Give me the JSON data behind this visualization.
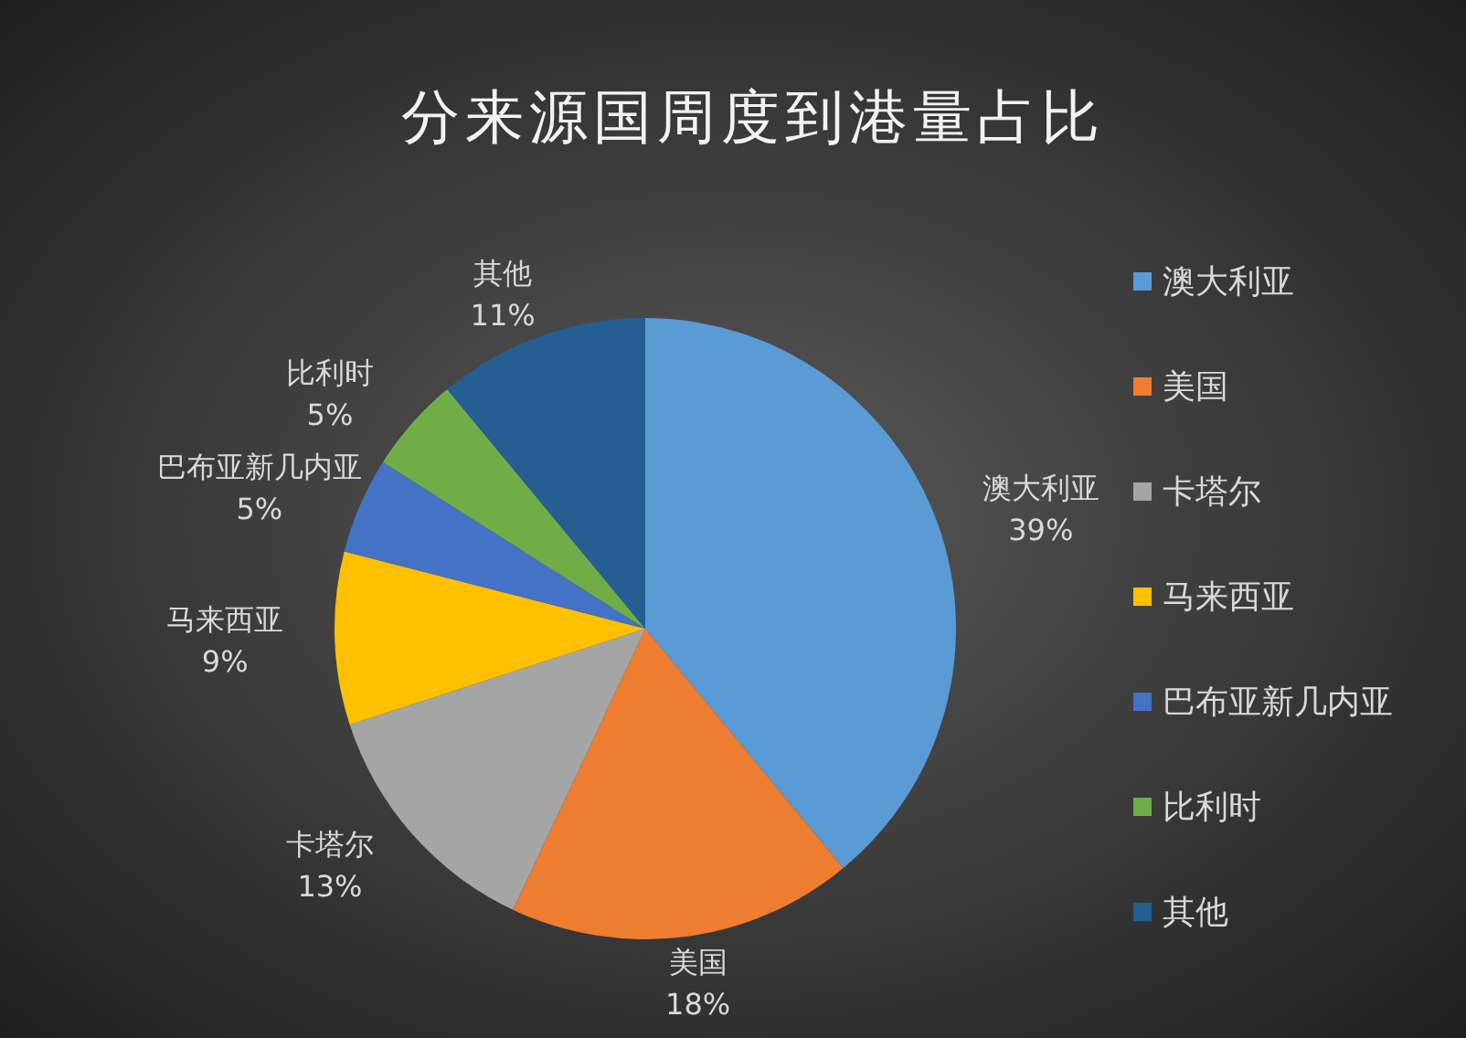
{
  "chart_data": {
    "type": "pie",
    "title": "分来源国周度到港量占比",
    "categories": [
      "澳大利亚",
      "美国",
      "卡塔尔",
      "马来西亚",
      "巴布亚新几内亚",
      "比利时",
      "其他"
    ],
    "values": [
      39,
      18,
      13,
      9,
      5,
      5,
      11
    ],
    "value_labels": [
      "39%",
      "18%",
      "13%",
      "9%",
      "5%",
      "5%",
      "11%"
    ],
    "colors": [
      "#5b9bd5",
      "#ed7d31",
      "#a5a5a5",
      "#ffc000",
      "#4472c4",
      "#70ad47",
      "#255e91"
    ],
    "legend": "right"
  }
}
